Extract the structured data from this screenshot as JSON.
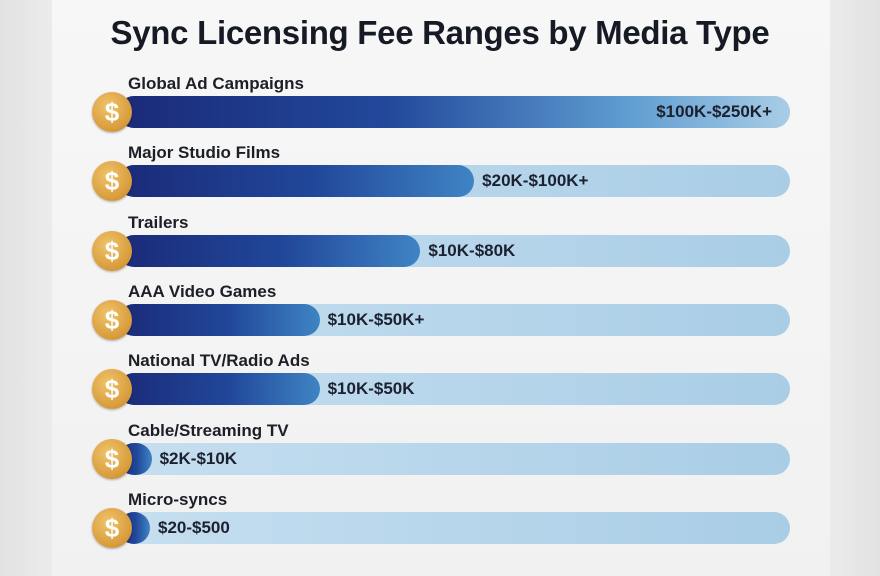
{
  "chart_data": {
    "type": "bar",
    "orientation": "horizontal",
    "title": "Sync Licensing Fee Ranges by Media Type",
    "categories": [
      "Global Ad Campaigns",
      "Major Studio Films",
      "Trailers",
      "AAA Video Games",
      "National TV/Radio Ads",
      "Cable/Streaming TV",
      "Micro-syncs"
    ],
    "data_labels": [
      "$100K-$250K+",
      "$20K-$100K+",
      "$10K-$80K",
      "$10K-$50K+",
      "$10K-$50K",
      "$2K-$10K",
      "$20-$500"
    ],
    "values": [
      1.0,
      0.53,
      0.45,
      0.3,
      0.3,
      0.05,
      0.02
    ],
    "value_unit": "fraction of bar filled",
    "icon": "dollar-coin-icon",
    "coin_symbol": "$",
    "colors": {
      "fill_dark": "#1a2a78",
      "fill_light": "#3f84c4",
      "track": "#b8d6eb",
      "coin": "#d79a3a"
    },
    "grid": false,
    "legend": "none"
  }
}
